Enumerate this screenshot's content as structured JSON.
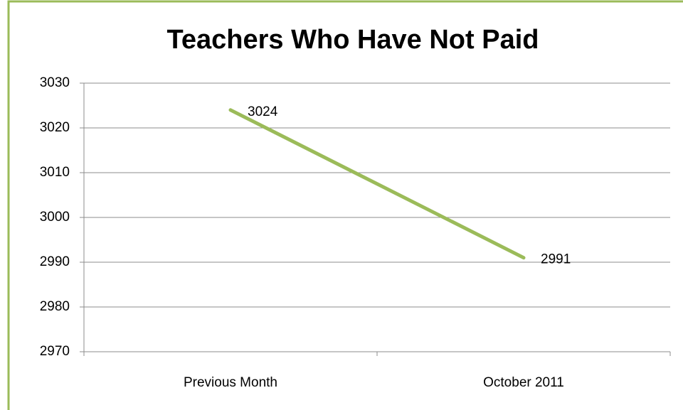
{
  "chart_data": {
    "type": "line",
    "title": "Teachers Who Have Not Paid",
    "categories": [
      "Previous Month",
      "October 2011"
    ],
    "series": [
      {
        "name": "Teachers Who Have Not Paid",
        "color": "#9bbb59",
        "values": [
          3024,
          2991
        ]
      }
    ],
    "ylim": [
      2970,
      3030
    ],
    "yticks": [
      2970,
      2980,
      2990,
      3000,
      3010,
      3020,
      3030
    ],
    "grid": true
  }
}
